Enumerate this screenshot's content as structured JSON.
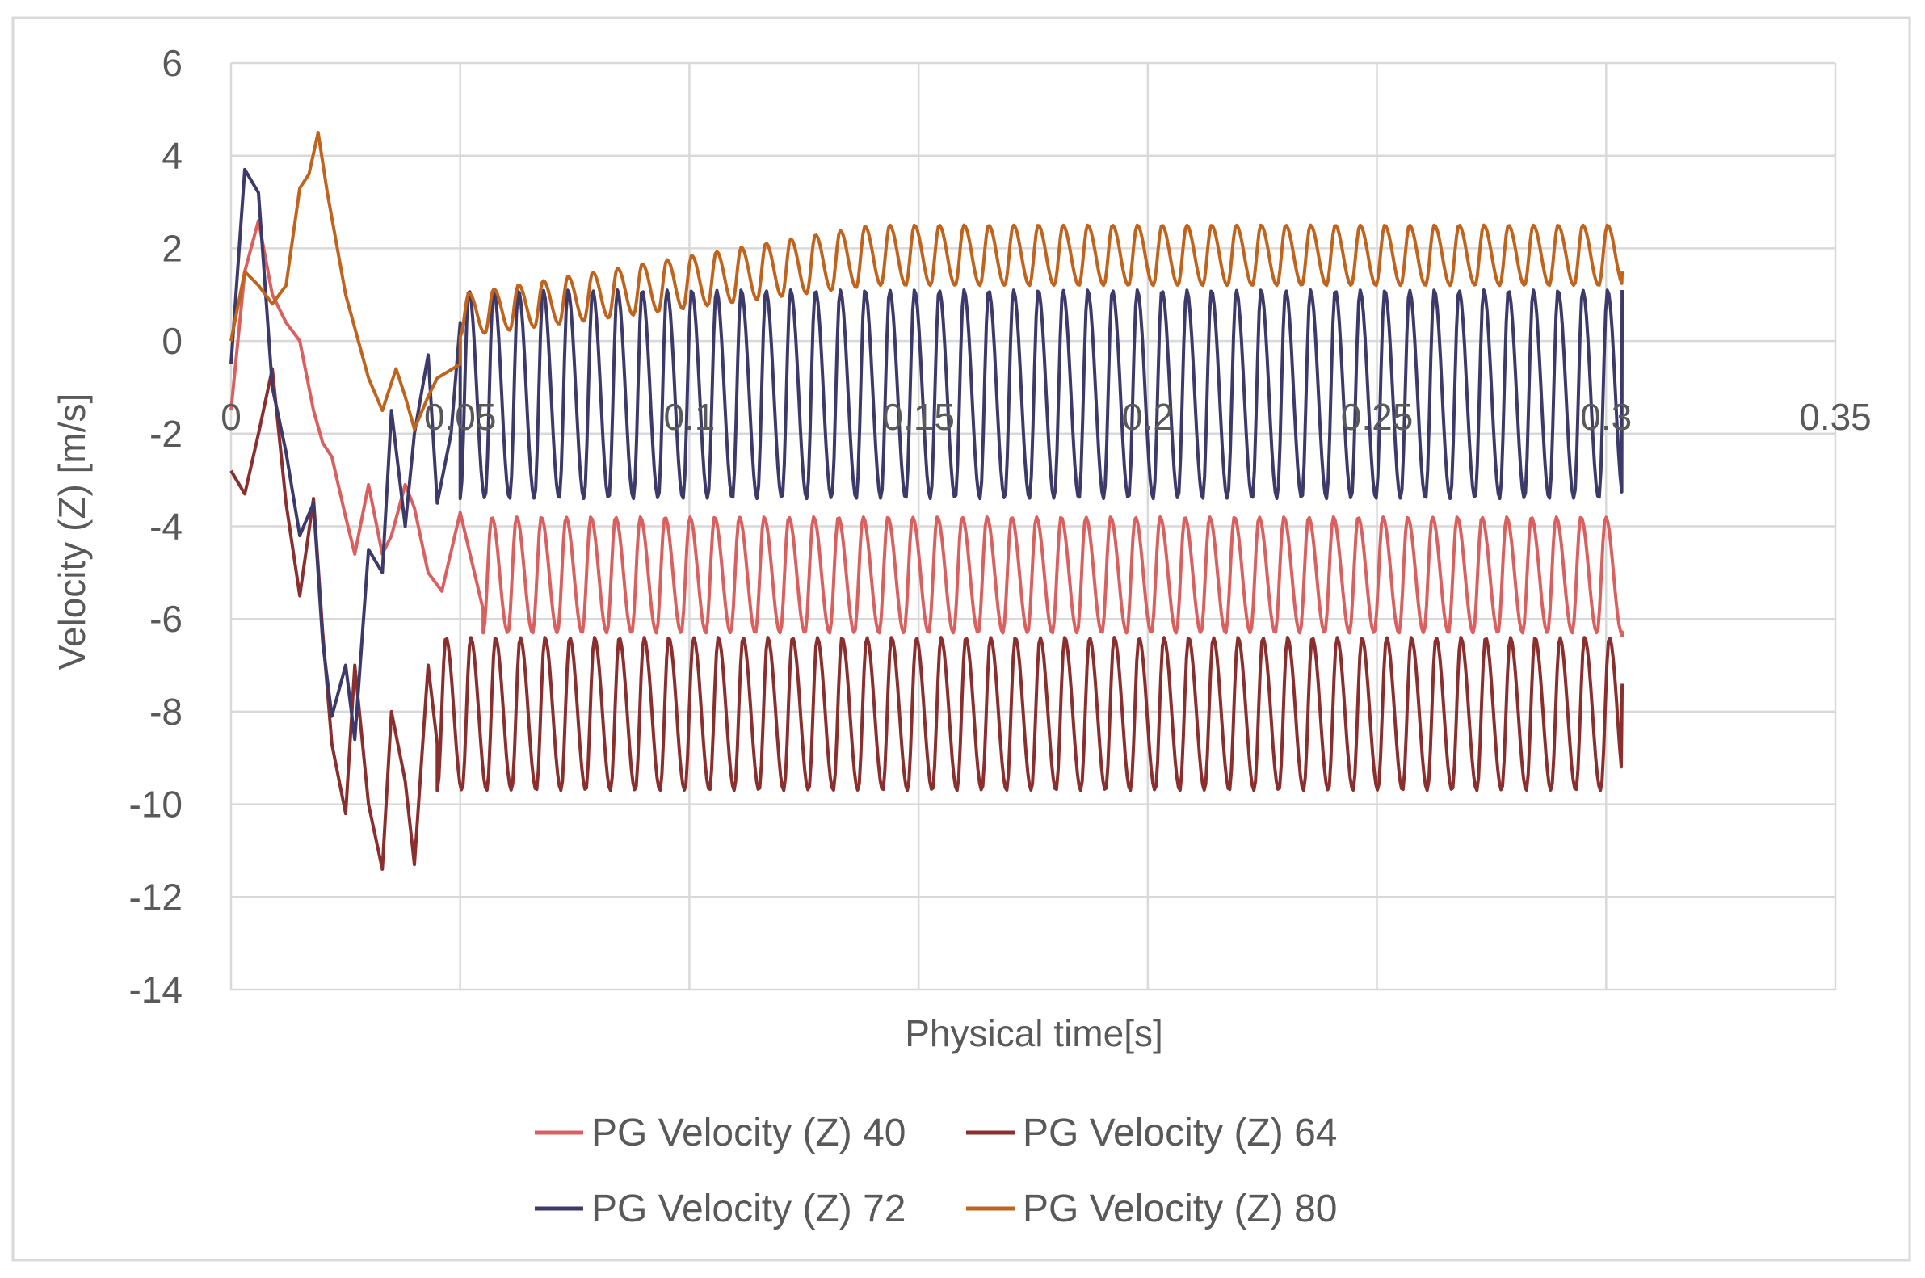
{
  "chart_data": {
    "type": "line",
    "title": "",
    "xlabel": "Physical time[s]",
    "ylabel": "Velocity (Z) [m/s]",
    "xlim": [
      0,
      0.35
    ],
    "ylim": [
      -14,
      6
    ],
    "x_ticks": [
      "0",
      "0.05",
      "0.1",
      "0.15",
      "0.2",
      "0.25",
      "0.3",
      "0.35"
    ],
    "y_ticks": [
      "6",
      "4",
      "2",
      "0",
      "-2",
      "-4",
      "-6",
      "-8",
      "-10",
      "-12",
      "-14"
    ],
    "x_tick_values": [
      0,
      0.05,
      0.1,
      0.15,
      0.2,
      0.25,
      0.3,
      0.35
    ],
    "y_tick_values": [
      6,
      4,
      2,
      0,
      -2,
      -4,
      -6,
      -8,
      -10,
      -12,
      -14
    ],
    "grid": true,
    "legend_position": "bottom",
    "series": [
      {
        "name": "PG Velocity (Z) 40",
        "color": "#d9605f",
        "x": [
          0,
          0.003,
          0.006,
          0.009,
          0.012,
          0.015,
          0.018,
          0.02,
          0.022,
          0.025,
          0.027,
          0.03,
          0.033,
          0.035,
          0.038,
          0.04,
          0.043,
          0.046,
          0.05,
          0.055,
          0.06,
          0.3,
          0.3035
        ],
        "y": [
          -1.5,
          1.5,
          2.6,
          1.0,
          0.4,
          0.0,
          -1.5,
          -2.2,
          -2.5,
          -3.8,
          -4.6,
          -3.1,
          -4.6,
          -4.2,
          -3.1,
          -3.6,
          -5.0,
          -5.4,
          -3.7,
          -5.8,
          -6.2,
          -5.0,
          -6.4
        ],
        "steady_state": {
          "from": 0.055,
          "to": 0.3035,
          "period": 0.0054,
          "low": -6.3,
          "high": -3.8
        }
      },
      {
        "name": "PG Velocity (Z) 64",
        "color": "#8b2e2e",
        "x": [
          0,
          0.003,
          0.006,
          0.009,
          0.012,
          0.015,
          0.018,
          0.02,
          0.022,
          0.025,
          0.027,
          0.03,
          0.033,
          0.035,
          0.038,
          0.04,
          0.043,
          0.045,
          0.048,
          0.05,
          0.3035
        ],
        "y": [
          -2.8,
          -3.3,
          -2.0,
          -0.6,
          -3.5,
          -5.5,
          -3.4,
          -6.3,
          -8.7,
          -10.2,
          -7.0,
          -10.0,
          -11.4,
          -8.0,
          -9.5,
          -11.3,
          -7.0,
          -8.7,
          -9.9,
          -7.5,
          -7.4
        ],
        "steady_state": {
          "from": 0.045,
          "to": 0.3035,
          "period": 0.0054,
          "low": -9.7,
          "high": -6.4
        }
      },
      {
        "name": "PG Velocity (Z) 72",
        "color": "#3c3a6b",
        "x": [
          0,
          0.003,
          0.006,
          0.009,
          0.012,
          0.015,
          0.018,
          0.02,
          0.022,
          0.025,
          0.027,
          0.03,
          0.033,
          0.035,
          0.038,
          0.04,
          0.043,
          0.045,
          0.048,
          0.05,
          0.3035
        ],
        "y": [
          -0.5,
          3.7,
          3.2,
          -1.0,
          -2.4,
          -4.2,
          -3.5,
          -6.5,
          -8.1,
          -7.0,
          -8.6,
          -4.5,
          -5.0,
          -1.5,
          -4.0,
          -2.0,
          -0.3,
          -3.5,
          -2.0,
          0.4,
          1.1
        ],
        "steady_state": {
          "from": 0.05,
          "to": 0.3035,
          "period": 0.0054,
          "low": -3.4,
          "high": 1.1
        }
      },
      {
        "name": "PG Velocity (Z) 80",
        "color": "#c0631c",
        "x": [
          0,
          0.003,
          0.006,
          0.009,
          0.012,
          0.015,
          0.017,
          0.019,
          0.021,
          0.025,
          0.03,
          0.033,
          0.036,
          0.038,
          0.04,
          0.043,
          0.045,
          0.05,
          0.055,
          0.065,
          0.09,
          0.12,
          0.13,
          0.14,
          0.15,
          0.3,
          0.3035
        ],
        "y": [
          0,
          1.5,
          1.2,
          0.8,
          1.2,
          3.3,
          3.6,
          4.5,
          3.2,
          1.0,
          -0.8,
          -1.5,
          -0.6,
          -1.2,
          -1.9,
          -1.2,
          -0.8,
          -0.5,
          0.5,
          0.8,
          0.8,
          1.2,
          2.0,
          2.4,
          2.4,
          2.3,
          1.5
        ],
        "steady_state": {
          "from": 0.05,
          "to": 0.3035,
          "period": 0.0054,
          "low_start": 0.1,
          "high_start": 1.0,
          "low_end": 1.2,
          "high_end": 2.5
        }
      }
    ]
  },
  "legend": {
    "row1": [
      "PG Velocity (Z) 40",
      "PG Velocity (Z) 64"
    ],
    "row2": [
      "PG Velocity (Z) 72",
      "PG Velocity (Z) 80"
    ]
  }
}
